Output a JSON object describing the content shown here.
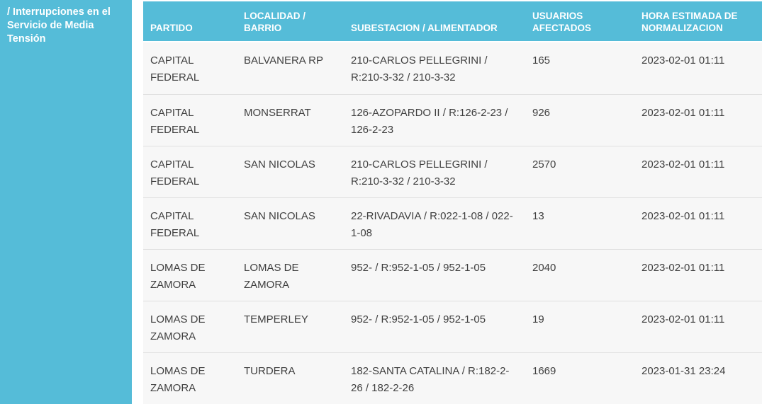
{
  "colors": {
    "accent_cyan": "#55bcd8",
    "row_background": "#f7f7f7",
    "row_divider": "#e0e0e0",
    "body_text": "#3f3f3f",
    "header_text": "#ffffff"
  },
  "sidebar": {
    "title": "/ Interrupciones en el Servicio de Media Tensión"
  },
  "table": {
    "columns": {
      "partido": "PARTIDO",
      "localidad": "LOCALIDAD / BARRIO",
      "subestacion": "SUBESTACION / ALIMENTADOR",
      "usuarios": "USUARIOS AFECTADOS",
      "hora": "HORA ESTIMADA DE NORMALIZACION"
    },
    "rows": [
      {
        "partido": "CAPITAL FEDERAL",
        "localidad": "BALVANERA RP",
        "subestacion": "210-CARLOS PELLEGRINI / R:210-3-32 / 210-3-32",
        "usuarios": "165",
        "hora": "2023-02-01 01:11"
      },
      {
        "partido": "CAPITAL FEDERAL",
        "localidad": "MONSERRAT",
        "subestacion": "126-AZOPARDO II / R:126-2-23 / 126-2-23",
        "usuarios": "926",
        "hora": "2023-02-01 01:11"
      },
      {
        "partido": "CAPITAL FEDERAL",
        "localidad": "SAN NICOLAS",
        "subestacion": "210-CARLOS PELLEGRINI / R:210-3-32 / 210-3-32",
        "usuarios": "2570",
        "hora": "2023-02-01 01:11"
      },
      {
        "partido": "CAPITAL FEDERAL",
        "localidad": "SAN NICOLAS",
        "subestacion": "22-RIVADAVIA / R:022-1-08 / 022-1-08",
        "usuarios": "13",
        "hora": "2023-02-01 01:11"
      },
      {
        "partido": "LOMAS DE ZAMORA",
        "localidad": "LOMAS DE ZAMORA",
        "subestacion": "952- / R:952-1-05 / 952-1-05",
        "usuarios": "2040",
        "hora": "2023-02-01 01:11"
      },
      {
        "partido": "LOMAS DE ZAMORA",
        "localidad": "TEMPERLEY",
        "subestacion": "952- / R:952-1-05 / 952-1-05",
        "usuarios": "19",
        "hora": "2023-02-01 01:11"
      },
      {
        "partido": "LOMAS DE ZAMORA",
        "localidad": "TURDERA",
        "subestacion": "182-SANTA CATALINA / R:182-2-26 / 182-2-26",
        "usuarios": "1669",
        "hora": "2023-01-31 23:24"
      }
    ]
  }
}
